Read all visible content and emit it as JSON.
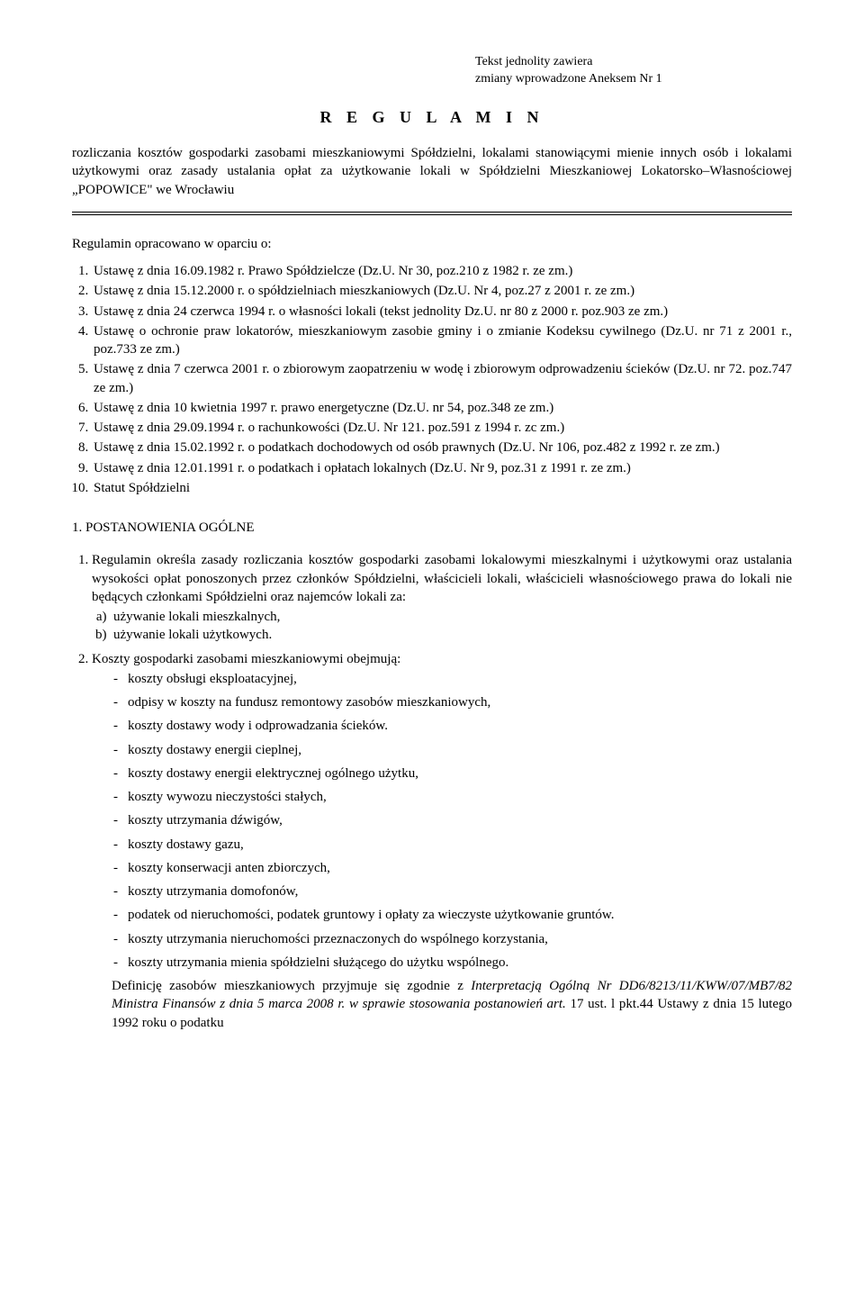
{
  "header": {
    "line1": "Tekst jednolity zawiera",
    "line2": "zmiany wprowadzone Aneksem Nr 1"
  },
  "title": "R E G U L A M I N",
  "intro": "rozliczania kosztów gospodarki zasobami mieszkaniowymi Spółdzielni, lokalami stanowiącymi mienie innych osób i lokalami użytkowymi oraz zasady ustalania opłat za użytkowanie lokali w Spółdzielni Mieszkaniowej Lokatorsko–Własnościowej „POPOWICE\" we Wrocławiu",
  "basisLead": "Regulamin opracowano w oparciu o:",
  "basis": [
    "Ustawę z dnia 16.09.1982 r. Prawo Spółdzielcze (Dz.U. Nr 30, poz.210 z 1982 r. ze zm.)",
    "Ustawę z dnia 15.12.2000 r. o spółdzielniach mieszkaniowych (Dz.U. Nr 4, poz.27 z 2001 r. ze zm.)",
    "Ustawę z dnia 24 czerwca 1994 r. o własności lokali (tekst jednolity Dz.U. nr 80 z 2000 r. poz.903 ze zm.)",
    "Ustawę o ochronie praw lokatorów, mieszkaniowym zasobie gminy i o zmianie Kodeksu cywilnego (Dz.U. nr 71 z 2001 r., poz.733 ze zm.)",
    "Ustawę z dnia 7 czerwca 2001 r. o zbiorowym zaopatrzeniu w wodę i zbiorowym odprowadzeniu ścieków (Dz.U. nr 72. poz.747 ze zm.)",
    "Ustawę z dnia 10 kwietnia 1997 r. prawo energetyczne (Dz.U. nr 54, poz.348 ze zm.)",
    "Ustawę z dnia 29.09.1994 r. o rachunkowości (Dz.U. Nr 121. poz.591 z 1994 r. zc zm.)",
    "Ustawę z dnia 15.02.1992 r. o podatkach dochodowych od osób prawnych (Dz.U. Nr 106, poz.482 z 1992 r. ze zm.)",
    "Ustawę z dnia 12.01.1991 r. o podatkach i opłatach lokalnych (Dz.U. Nr 9, poz.31 z 1991 r. ze zm.)",
    "Statut Spółdzielni"
  ],
  "section1": {
    "num": "1.",
    "title": "POSTANOWIENIA OGÓLNE"
  },
  "para1": {
    "lead": "Regulamin określa zasady rozliczania kosztów gospodarki zasobami lokalowymi mieszkalnymi i użytkowymi oraz ustalania wysokości opłat ponoszonych przez członków Spółdzielni, właścicieli lokali, właścicieli własnościowego prawa do lokali nie będących członkami Spółdzielni oraz najemców lokali za:",
    "items": [
      "używanie lokali mieszkalnych,",
      "używanie lokali użytkowych."
    ]
  },
  "para2": {
    "lead": "Koszty gospodarki zasobami mieszkaniowymi obejmują:",
    "items": [
      "koszty obsługi eksploatacyjnej,",
      "odpisy w koszty na fundusz remontowy zasobów mieszkaniowych,",
      "koszty dostawy wody i odprowadzania ścieków.",
      "koszty dostawy energii cieplnej,",
      "koszty dostawy energii elektrycznej ogólnego użytku,",
      "koszty wywozu nieczystości stałych,",
      "koszty utrzymania dźwigów,",
      "koszty dostawy gazu,",
      "koszty konserwacji anten zbiorczych,",
      "koszty utrzymania domofonów,",
      "podatek od nieruchomości, podatek gruntowy i opłaty za wieczyste użytkowanie gruntów.",
      "koszty utrzymania nieruchomości przeznaczonych do wspólnego korzystania,",
      "koszty utrzymania mienia spółdzielni służącego do użytku wspólnego."
    ],
    "trailing_part1": "Definicję zasobów mieszkaniowych przyjmuje się zgodnie z ",
    "trailing_italic": "Interpretacją Ogólną Nr DD6/8213/11/KWW/07/MB7/82 Ministra Finansów z dnia 5 marca 2008 r. w sprawie stosowania postanowień art.",
    "trailing_part2": " 17 ust. l pkt.44 Ustawy z dnia 15 lutego 1992 roku o podatku"
  }
}
